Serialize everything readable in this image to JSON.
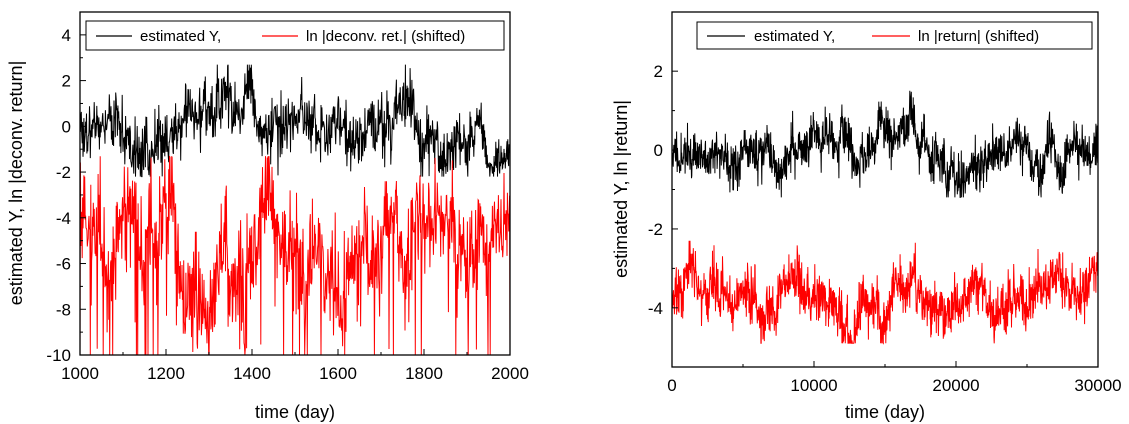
{
  "chart_data": [
    {
      "type": "line",
      "xlabel": "time (day)",
      "ylabel": "estimated Y, ln |deconv. return|",
      "xlim": [
        1000,
        2000
      ],
      "ylim": [
        -10,
        5
      ],
      "xticks": [
        1000,
        1200,
        1400,
        1600,
        1800,
        2000
      ],
      "yticks": [
        -10,
        -8,
        -6,
        -4,
        -2,
        0,
        2,
        4
      ],
      "legend_position": "top",
      "grid": false,
      "series": [
        {
          "name": "estimated Y,",
          "color": "#000000",
          "mean": 0.3,
          "amplitude": 0.85,
          "min": -2.2,
          "max": 2.7,
          "n": 1000,
          "seed": 3
        },
        {
          "name": "ln |deconv. ret.| (shifted)",
          "color": "#ff0000",
          "mean": -4.8,
          "amplitude": 1.5,
          "min": -10,
          "max": -1.3,
          "n": 1000,
          "seed": 7
        }
      ]
    },
    {
      "type": "line",
      "xlabel": "time (day)",
      "ylabel": "estimated Y, ln |return|",
      "xlim": [
        0,
        30000
      ],
      "ylim": [
        -5.5,
        3.5
      ],
      "xticks": [
        0,
        10000,
        20000,
        30000
      ],
      "yticks": [
        -4,
        -2,
        0,
        2
      ],
      "legend_position": "top",
      "grid": false,
      "series": [
        {
          "name": "estimated Y,",
          "color": "#000000",
          "mean": -0.1,
          "amplitude": 0.4,
          "min": -1.2,
          "max": 2.05,
          "n": 1400,
          "seed": 11
        },
        {
          "name": "ln |return| (shifted)",
          "color": "#ff0000",
          "mean": -3.5,
          "amplitude": 0.45,
          "min": -4.9,
          "max": -1.35,
          "n": 1400,
          "seed": 13
        }
      ]
    }
  ]
}
